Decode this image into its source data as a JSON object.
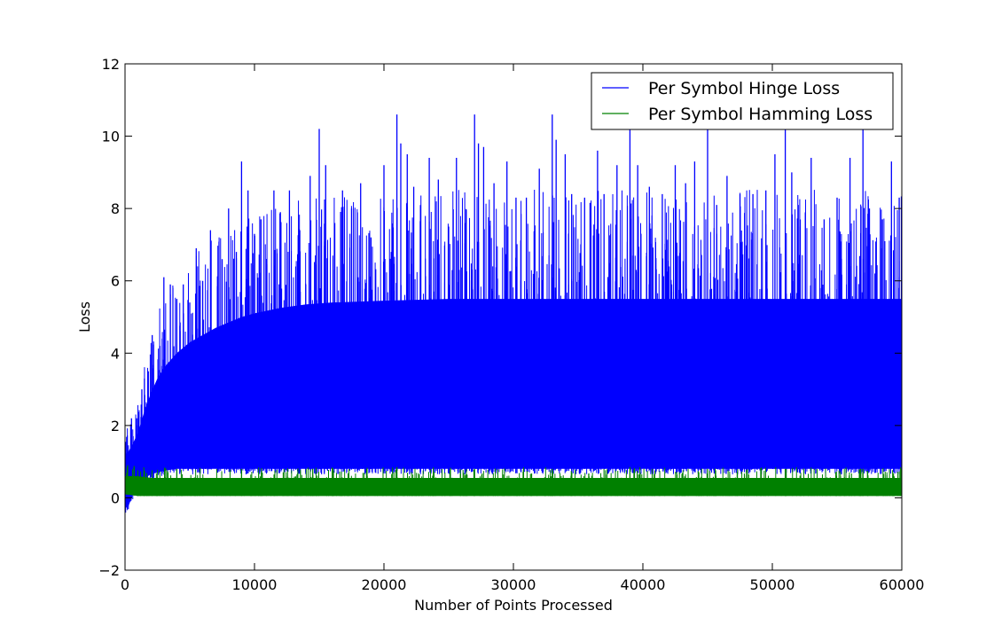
{
  "chart_data": {
    "type": "line",
    "title": "",
    "xlabel": "Number of Points Processed",
    "ylabel": "Loss",
    "xlim": [
      0,
      60000
    ],
    "ylim": [
      -2,
      12
    ],
    "x_ticks": [
      0,
      10000,
      20000,
      30000,
      40000,
      50000,
      60000
    ],
    "x_tick_labels": [
      "0",
      "10000",
      "20000",
      "30000",
      "40000",
      "50000",
      "60000"
    ],
    "y_ticks": [
      -2,
      0,
      2,
      4,
      6,
      8,
      10,
      12
    ],
    "y_tick_labels": [
      "−2",
      "0",
      "2",
      "4",
      "6",
      "8",
      "10",
      "12"
    ],
    "grid": false,
    "legend_position": "top-right",
    "series": [
      {
        "name": "Per Symbol Hinge Loss",
        "color": "#0000ff",
        "envelope": {
          "x": [
            0,
            300,
            600,
            1000,
            1500,
            2000,
            2500,
            3000,
            4000,
            5000,
            6000,
            7000,
            8000,
            9000,
            10000,
            12000,
            14000,
            16000,
            20000,
            25000,
            30000,
            35000,
            40000,
            45000,
            50000,
            55000,
            60000
          ],
          "upper": [
            1.2,
            1.3,
            1.5,
            1.8,
            2.4,
            2.9,
            3.3,
            3.6,
            4.0,
            4.3,
            4.5,
            4.7,
            4.85,
            5.0,
            5.1,
            5.25,
            5.35,
            5.4,
            5.45,
            5.5,
            5.5,
            5.5,
            5.5,
            5.5,
            5.5,
            5.5,
            5.5
          ],
          "lower": [
            -0.3,
            -0.2,
            0.1,
            0.4,
            0.55,
            0.65,
            0.7,
            0.75,
            0.8,
            0.8,
            0.8,
            0.8,
            0.8,
            0.8,
            0.8,
            0.8,
            0.8,
            0.8,
            0.8,
            0.8,
            0.8,
            0.8,
            0.8,
            0.8,
            0.8,
            0.8,
            0.8
          ]
        },
        "peaks": [
          [
            500,
            2.2
          ],
          [
            900,
            2.2
          ],
          [
            1300,
            3.0
          ],
          [
            1500,
            3.3
          ],
          [
            1800,
            3.5
          ],
          [
            2100,
            4.5
          ],
          [
            2700,
            4.2
          ],
          [
            3000,
            6.1
          ],
          [
            3500,
            5.9
          ],
          [
            4000,
            5.5
          ],
          [
            4500,
            5.9
          ],
          [
            5000,
            5.4
          ],
          [
            5500,
            6.9
          ],
          [
            6000,
            6.0
          ],
          [
            6600,
            7.4
          ],
          [
            7500,
            6.6
          ],
          [
            8000,
            8.0
          ],
          [
            8600,
            6.8
          ],
          [
            9000,
            9.3
          ],
          [
            9500,
            8.5
          ],
          [
            10000,
            7.3
          ],
          [
            10500,
            7.7
          ],
          [
            11500,
            8.5
          ],
          [
            12000,
            7.9
          ],
          [
            12700,
            8.5
          ],
          [
            13500,
            7.4
          ],
          [
            14300,
            8.9
          ],
          [
            15000,
            10.2
          ],
          [
            15500,
            9.2
          ],
          [
            16200,
            7.6
          ],
          [
            16800,
            8.5
          ],
          [
            17500,
            8.0
          ],
          [
            18200,
            8.7
          ],
          [
            19000,
            7.2
          ],
          [
            20000,
            9.2
          ],
          [
            21000,
            10.6
          ],
          [
            21300,
            9.8
          ],
          [
            21800,
            9.5
          ],
          [
            22300,
            8.6
          ],
          [
            23500,
            9.4
          ],
          [
            24200,
            8.8
          ],
          [
            25000,
            7.5
          ],
          [
            25600,
            9.4
          ],
          [
            27000,
            10.6
          ],
          [
            27300,
            9.8
          ],
          [
            27700,
            9.7
          ],
          [
            28500,
            8.7
          ],
          [
            29500,
            9.3
          ],
          [
            30200,
            8.3
          ],
          [
            31000,
            8.3
          ],
          [
            32000,
            9.1
          ],
          [
            33000,
            10.6
          ],
          [
            33300,
            9.9
          ],
          [
            34000,
            9.5
          ],
          [
            34500,
            8.4
          ],
          [
            35500,
            8.3
          ],
          [
            36500,
            9.6
          ],
          [
            37000,
            8.4
          ],
          [
            38000,
            9.2
          ],
          [
            39000,
            10.3
          ],
          [
            39600,
            9.2
          ],
          [
            40500,
            8.6
          ],
          [
            41500,
            8.4
          ],
          [
            42500,
            9.2
          ],
          [
            43300,
            8.7
          ],
          [
            44000,
            9.3
          ],
          [
            45000,
            10.2
          ],
          [
            45700,
            8.1
          ],
          [
            46500,
            8.9
          ],
          [
            47500,
            8.4
          ],
          [
            48500,
            8.4
          ],
          [
            49500,
            8.5
          ],
          [
            50200,
            9.5
          ],
          [
            51000,
            10.3
          ],
          [
            51500,
            9.0
          ],
          [
            52000,
            8.1
          ],
          [
            53000,
            9.4
          ],
          [
            54000,
            7.7
          ],
          [
            55000,
            8.3
          ],
          [
            56000,
            9.4
          ],
          [
            57000,
            10.2
          ],
          [
            57500,
            8.0
          ],
          [
            58500,
            7.7
          ],
          [
            59200,
            9.3
          ],
          [
            59800,
            8.3
          ]
        ]
      },
      {
        "name": "Per Symbol Hamming Loss",
        "color": "#008000",
        "envelope": {
          "x": [
            0,
            1000,
            2000,
            5000,
            10000,
            20000,
            30000,
            40000,
            50000,
            60000
          ],
          "upper": [
            0.6,
            0.6,
            0.55,
            0.55,
            0.55,
            0.55,
            0.55,
            0.55,
            0.55,
            0.55
          ],
          "lower": [
            0.1,
            0.05,
            0.05,
            0.05,
            0.05,
            0.05,
            0.05,
            0.05,
            0.05,
            0.05
          ]
        },
        "peaks": [
          [
            200,
            0.9
          ],
          [
            700,
            0.85
          ],
          [
            1500,
            0.75
          ],
          [
            4000,
            0.8
          ],
          [
            9000,
            0.8
          ],
          [
            14500,
            0.8
          ],
          [
            21000,
            0.85
          ],
          [
            27000,
            0.8
          ],
          [
            33000,
            0.8
          ],
          [
            39000,
            0.85
          ],
          [
            45000,
            0.8
          ],
          [
            51000,
            0.8
          ],
          [
            57000,
            0.8
          ]
        ]
      }
    ]
  }
}
